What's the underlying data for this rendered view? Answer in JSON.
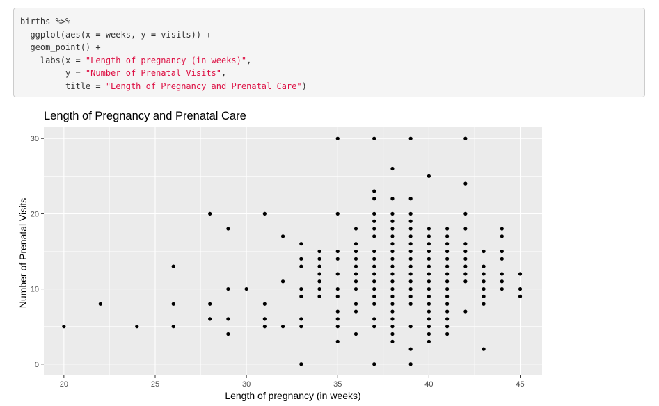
{
  "code": {
    "lines": [
      [
        {
          "t": "births %>%",
          "c": ""
        }
      ],
      [
        {
          "t": "  ggplot(aes(x = weeks, y = visits)) +",
          "c": ""
        }
      ],
      [
        {
          "t": "  geom_point() +",
          "c": ""
        }
      ],
      [
        {
          "t": "    labs(x = ",
          "c": ""
        },
        {
          "t": "\"Length of pregnancy (in weeks)\"",
          "c": "str"
        },
        {
          "t": ",",
          "c": ""
        }
      ],
      [
        {
          "t": "         y = ",
          "c": ""
        },
        {
          "t": "\"Number of Prenatal Visits\"",
          "c": "str"
        },
        {
          "t": ",",
          "c": ""
        }
      ],
      [
        {
          "t": "         title = ",
          "c": ""
        },
        {
          "t": "\"Length of Pregnancy and Prenatal Care\"",
          "c": "str"
        },
        {
          "t": ")",
          "c": ""
        }
      ]
    ]
  },
  "chart_data": {
    "type": "scatter",
    "title": "Length of Pregnancy and Prenatal Care",
    "xlabel": "Length of pregnancy (in weeks)",
    "ylabel": "Number of Prenatal Visits",
    "xlim": [
      18.9,
      46.2
    ],
    "ylim": [
      -1.5,
      31.5
    ],
    "xticks": [
      20,
      25,
      30,
      35,
      40,
      45
    ],
    "yticks": [
      0,
      10,
      20,
      30
    ],
    "grid": true,
    "colors": {
      "panel": "#ebebeb",
      "grid_major": "#ffffff",
      "point": "#000000"
    },
    "points": [
      [
        20,
        5
      ],
      [
        22,
        8
      ],
      [
        24,
        5
      ],
      [
        26,
        13
      ],
      [
        26,
        8
      ],
      [
        26,
        5
      ],
      [
        28,
        20
      ],
      [
        28,
        8
      ],
      [
        28,
        6
      ],
      [
        29,
        18
      ],
      [
        29,
        10
      ],
      [
        29,
        6
      ],
      [
        29,
        4
      ],
      [
        30,
        10
      ],
      [
        31,
        20
      ],
      [
        31,
        8
      ],
      [
        31,
        6
      ],
      [
        31,
        5
      ],
      [
        32,
        17
      ],
      [
        32,
        11
      ],
      [
        32,
        5
      ],
      [
        33,
        16
      ],
      [
        33,
        14
      ],
      [
        33,
        13
      ],
      [
        33,
        10
      ],
      [
        33,
        9
      ],
      [
        33,
        6
      ],
      [
        33,
        5
      ],
      [
        33,
        0
      ],
      [
        34,
        15
      ],
      [
        34,
        14
      ],
      [
        34,
        13
      ],
      [
        34,
        12
      ],
      [
        34,
        11
      ],
      [
        34,
        10
      ],
      [
        34,
        9
      ],
      [
        35,
        30
      ],
      [
        35,
        20
      ],
      [
        35,
        15
      ],
      [
        35,
        14
      ],
      [
        35,
        12
      ],
      [
        35,
        10
      ],
      [
        35,
        9
      ],
      [
        35,
        7
      ],
      [
        35,
        6
      ],
      [
        35,
        5
      ],
      [
        35,
        3
      ],
      [
        36,
        18
      ],
      [
        36,
        16
      ],
      [
        36,
        15
      ],
      [
        36,
        14
      ],
      [
        36,
        13
      ],
      [
        36,
        12
      ],
      [
        36,
        11
      ],
      [
        36,
        10
      ],
      [
        36,
        8
      ],
      [
        36,
        7
      ],
      [
        36,
        4
      ],
      [
        37,
        30
      ],
      [
        37,
        23
      ],
      [
        37,
        22
      ],
      [
        37,
        20
      ],
      [
        37,
        19
      ],
      [
        37,
        18
      ],
      [
        37,
        17
      ],
      [
        37,
        15
      ],
      [
        37,
        14
      ],
      [
        37,
        13
      ],
      [
        37,
        12
      ],
      [
        37,
        11
      ],
      [
        37,
        10
      ],
      [
        37,
        9
      ],
      [
        37,
        8
      ],
      [
        37,
        6
      ],
      [
        37,
        5
      ],
      [
        37,
        0
      ],
      [
        38,
        26
      ],
      [
        38,
        22
      ],
      [
        38,
        20
      ],
      [
        38,
        19
      ],
      [
        38,
        18
      ],
      [
        38,
        17
      ],
      [
        38,
        16
      ],
      [
        38,
        15
      ],
      [
        38,
        14
      ],
      [
        38,
        13
      ],
      [
        38,
        12
      ],
      [
        38,
        11
      ],
      [
        38,
        10
      ],
      [
        38,
        9
      ],
      [
        38,
        8
      ],
      [
        38,
        7
      ],
      [
        38,
        6
      ],
      [
        38,
        5
      ],
      [
        38,
        4
      ],
      [
        38,
        3
      ],
      [
        39,
        30
      ],
      [
        39,
        22
      ],
      [
        39,
        20
      ],
      [
        39,
        19
      ],
      [
        39,
        18
      ],
      [
        39,
        17
      ],
      [
        39,
        16
      ],
      [
        39,
        15
      ],
      [
        39,
        14
      ],
      [
        39,
        13
      ],
      [
        39,
        12
      ],
      [
        39,
        11
      ],
      [
        39,
        10
      ],
      [
        39,
        9
      ],
      [
        39,
        8
      ],
      [
        39,
        5
      ],
      [
        39,
        2
      ],
      [
        39,
        0
      ],
      [
        40,
        25
      ],
      [
        40,
        18
      ],
      [
        40,
        17
      ],
      [
        40,
        16
      ],
      [
        40,
        15
      ],
      [
        40,
        14
      ],
      [
        40,
        13
      ],
      [
        40,
        12
      ],
      [
        40,
        11
      ],
      [
        40,
        10
      ],
      [
        40,
        9
      ],
      [
        40,
        8
      ],
      [
        40,
        7
      ],
      [
        40,
        6
      ],
      [
        40,
        5
      ],
      [
        40,
        4
      ],
      [
        40,
        3
      ],
      [
        41,
        18
      ],
      [
        41,
        17
      ],
      [
        41,
        16
      ],
      [
        41,
        15
      ],
      [
        41,
        14
      ],
      [
        41,
        13
      ],
      [
        41,
        12
      ],
      [
        41,
        11
      ],
      [
        41,
        10
      ],
      [
        41,
        9
      ],
      [
        41,
        8
      ],
      [
        41,
        7
      ],
      [
        41,
        6
      ],
      [
        41,
        5
      ],
      [
        41,
        4
      ],
      [
        42,
        30
      ],
      [
        42,
        24
      ],
      [
        42,
        20
      ],
      [
        42,
        18
      ],
      [
        42,
        16
      ],
      [
        42,
        15
      ],
      [
        42,
        14
      ],
      [
        42,
        13
      ],
      [
        42,
        12
      ],
      [
        42,
        11
      ],
      [
        42,
        7
      ],
      [
        43,
        15
      ],
      [
        43,
        13
      ],
      [
        43,
        12
      ],
      [
        43,
        11
      ],
      [
        43,
        10
      ],
      [
        43,
        9
      ],
      [
        43,
        8
      ],
      [
        43,
        2
      ],
      [
        44,
        18
      ],
      [
        44,
        17
      ],
      [
        44,
        15
      ],
      [
        44,
        14
      ],
      [
        44,
        12
      ],
      [
        44,
        11
      ],
      [
        44,
        10
      ],
      [
        45,
        12
      ],
      [
        45,
        10
      ],
      [
        45,
        9
      ]
    ]
  }
}
